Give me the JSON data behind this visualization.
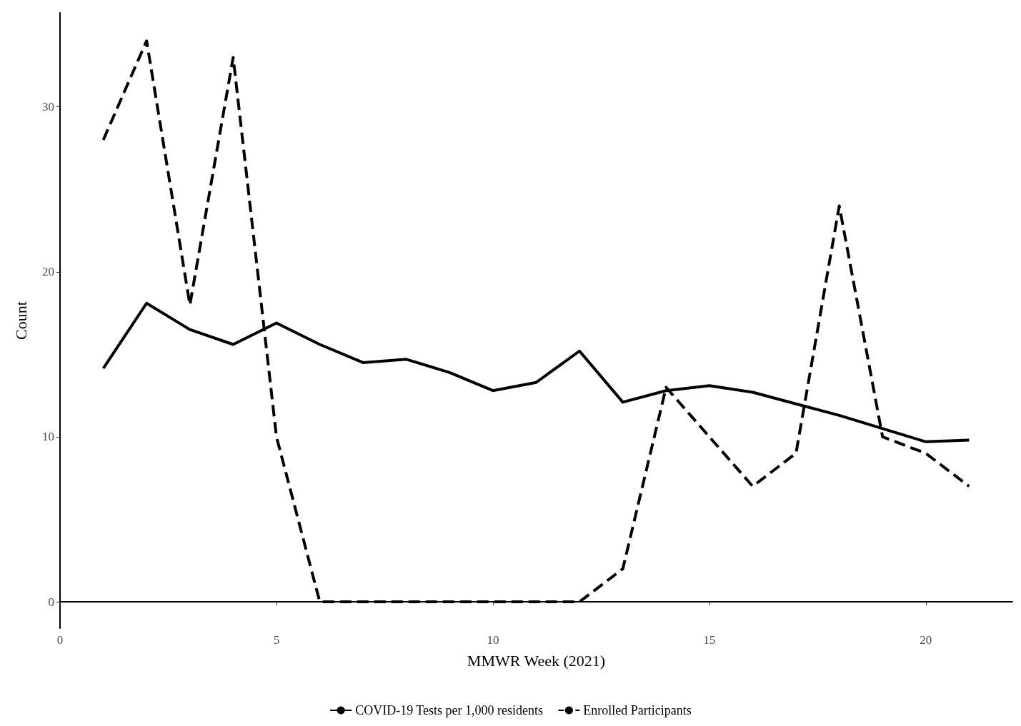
{
  "chart_data": {
    "type": "line",
    "xlabel": "MMWR Week (2021)",
    "ylabel": "Count",
    "x": [
      1,
      2,
      3,
      4,
      5,
      6,
      7,
      8,
      9,
      10,
      11,
      12,
      13,
      14,
      15,
      16,
      17,
      18,
      19,
      20,
      21
    ],
    "series": [
      {
        "name": "COVID-19 Tests per 1,000 residents",
        "color": "#000000",
        "line_style": "solid",
        "values": [
          14.15,
          18.1,
          16.5,
          15.6,
          16.9,
          15.6,
          14.5,
          14.7,
          13.9,
          12.8,
          13.3,
          15.2,
          12.1,
          12.8,
          13.1,
          12.7,
          12.0,
          11.3,
          10.5,
          9.7,
          9.8
        ]
      },
      {
        "name": "Enrolled Participants",
        "color": "#000000",
        "line_style": "dashed",
        "values": [
          28,
          34,
          18,
          33,
          10,
          0,
          0,
          0,
          0,
          0,
          0,
          0,
          2,
          13,
          10,
          7,
          9,
          24,
          10,
          9,
          7
        ]
      }
    ],
    "xlim": [
      0,
      22
    ],
    "ylim": [
      -1.6,
      35.7
    ],
    "xticks": [
      0,
      5,
      10,
      15,
      20
    ],
    "yticks": [
      0,
      10,
      20,
      30
    ],
    "grid": false,
    "legend": "bottom",
    "marker": "none"
  }
}
